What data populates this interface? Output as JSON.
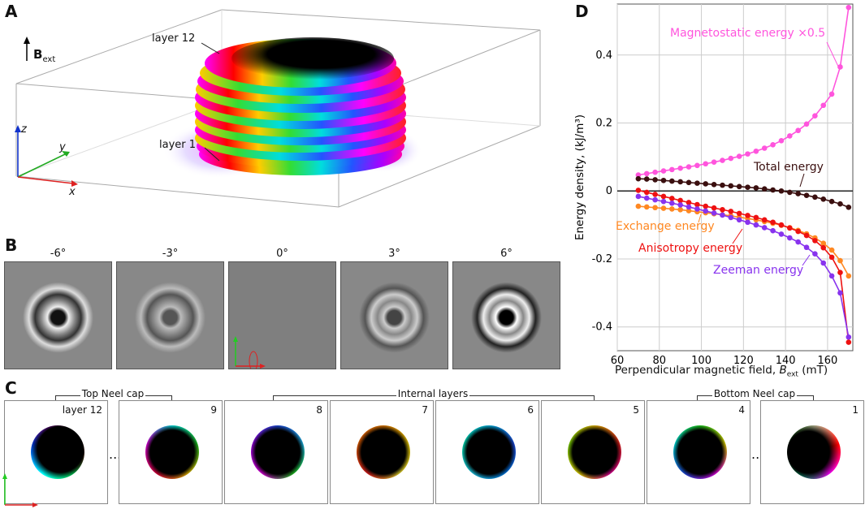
{
  "panelA": {
    "label": "A",
    "field_label": "B",
    "field_sub": "ext",
    "layer_top": "layer 12",
    "layer_bottom": "layer 1",
    "axis_x": "x",
    "axis_y": "y",
    "axis_z": "z"
  },
  "panelB": {
    "label": "B",
    "angles": [
      "-6°",
      "-3°",
      "0°",
      "3°",
      "6°"
    ]
  },
  "panelC": {
    "label": "C",
    "top_cap": "Top Neel cap",
    "internal": "Internal layers",
    "bottom_cap": "Bottom Neel cap",
    "layers": [
      "layer 12",
      "9",
      "8",
      "7",
      "6",
      "5",
      "4",
      "1"
    ],
    "ellipsis": "..."
  },
  "panelD": {
    "label": "D",
    "chart_data": {
      "type": "line",
      "xlabel": "Perpendicular magnetic field, ",
      "xlabel_sym": "B",
      "xlabel_sub": "ext",
      "xlabel_unit": " (mT)",
      "ylabel": "Energy density, (kJ/m³)",
      "xlim": [
        60,
        172
      ],
      "ylim": [
        -0.47,
        0.55
      ],
      "xticks": [
        60,
        80,
        100,
        120,
        140,
        160
      ],
      "yticks": [
        -0.4,
        -0.2,
        0,
        0.2,
        0.4
      ],
      "xtick_labels": [
        "60",
        "80",
        "100",
        "120",
        "140",
        "160"
      ],
      "ytick_labels": [
        "-0.4",
        "-0.2",
        "0",
        "0.2",
        "0.4"
      ],
      "x": [
        70,
        74,
        78,
        82,
        86,
        90,
        94,
        98,
        102,
        106,
        110,
        114,
        118,
        122,
        126,
        130,
        134,
        138,
        142,
        146,
        150,
        154,
        158,
        162,
        166,
        170
      ],
      "series": [
        {
          "name": "Magnetostatic energy ×0.5",
          "color": "#ff55dd",
          "values": [
            0.047,
            0.051,
            0.055,
            0.059,
            0.063,
            0.067,
            0.071,
            0.075,
            0.08,
            0.085,
            0.09,
            0.096,
            0.102,
            0.109,
            0.117,
            0.126,
            0.136,
            0.148,
            0.162,
            0.178,
            0.197,
            0.221,
            0.252,
            0.285,
            0.365,
            0.54
          ]
        },
        {
          "name": "Total energy",
          "color": "#3a0f0f",
          "values": [
            0.036,
            0.035,
            0.033,
            0.031,
            0.029,
            0.027,
            0.025,
            0.023,
            0.021,
            0.019,
            0.017,
            0.015,
            0.013,
            0.011,
            0.009,
            0.006,
            0.003,
            0.0,
            -0.004,
            -0.008,
            -0.013,
            -0.018,
            -0.024,
            -0.031,
            -0.038,
            -0.048
          ]
        },
        {
          "name": "Exchange energy",
          "color": "#ff8822",
          "values": [
            -0.045,
            -0.047,
            -0.049,
            -0.051,
            -0.053,
            -0.055,
            -0.058,
            -0.061,
            -0.064,
            -0.067,
            -0.07,
            -0.073,
            -0.077,
            -0.081,
            -0.085,
            -0.09,
            -0.095,
            -0.101,
            -0.108,
            -0.116,
            -0.126,
            -0.138,
            -0.154,
            -0.174,
            -0.205,
            -0.25
          ]
        },
        {
          "name": "Anisotropy energy",
          "color": "#ee1111",
          "values": [
            0.002,
            -0.004,
            -0.01,
            -0.016,
            -0.022,
            -0.028,
            -0.034,
            -0.04,
            -0.045,
            -0.05,
            -0.055,
            -0.06,
            -0.066,
            -0.072,
            -0.078,
            -0.085,
            -0.092,
            -0.1,
            -0.109,
            -0.119,
            -0.131,
            -0.146,
            -0.167,
            -0.195,
            -0.24,
            -0.445
          ]
        },
        {
          "name": "Zeeman energy",
          "color": "#8833ee",
          "values": [
            -0.016,
            -0.021,
            -0.026,
            -0.031,
            -0.036,
            -0.041,
            -0.047,
            -0.053,
            -0.059,
            -0.065,
            -0.071,
            -0.078,
            -0.085,
            -0.092,
            -0.1,
            -0.108,
            -0.117,
            -0.127,
            -0.138,
            -0.15,
            -0.166,
            -0.185,
            -0.212,
            -0.25,
            -0.3,
            -0.43
          ]
        }
      ]
    }
  }
}
